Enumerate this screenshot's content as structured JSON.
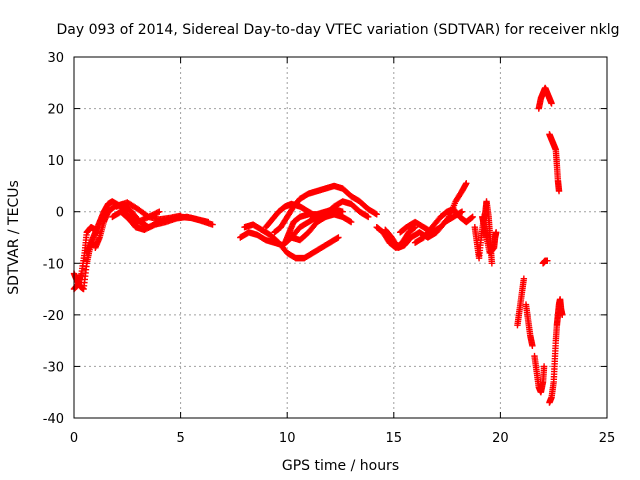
{
  "chart_data": {
    "type": "scatter",
    "title": "Day 093 of 2014, Sidereal Day-to-day VTEC variation (SDTVAR) for receiver nklg",
    "xlabel": "GPS time / hours",
    "ylabel": "SDTVAR / TECUs",
    "xlim": [
      0,
      25
    ],
    "ylim": [
      -40,
      30
    ],
    "x_ticks": [
      "0",
      "5",
      "10",
      "15",
      "20",
      "25"
    ],
    "y_ticks": [
      "30",
      "20",
      "10",
      "0",
      "-10",
      "-20",
      "-30",
      "-40"
    ],
    "grid": true,
    "marker": "+",
    "color": "#ff0000",
    "tracks": [
      {
        "name": "track-1",
        "points": [
          [
            0.0,
            -12
          ],
          [
            0.15,
            -13.5
          ],
          [
            0.3,
            -14.5
          ],
          [
            0.45,
            -15
          ],
          [
            0.6,
            -10
          ],
          [
            0.75,
            -7
          ],
          [
            0.9,
            -6
          ]
        ]
      },
      {
        "name": "track-2",
        "points": [
          [
            0.0,
            -15
          ],
          [
            0.2,
            -14
          ],
          [
            0.35,
            -12
          ],
          [
            0.5,
            -8
          ],
          [
            0.6,
            -4
          ],
          [
            0.8,
            -3
          ],
          [
            1.0,
            -3.5
          ],
          [
            1.1,
            -4
          ]
        ]
      },
      {
        "name": "track-3",
        "points": [
          [
            0.6,
            -8
          ],
          [
            0.8,
            -6
          ],
          [
            1.0,
            -4
          ],
          [
            1.2,
            -2
          ],
          [
            1.4,
            0
          ],
          [
            1.6,
            1.5
          ],
          [
            1.8,
            2
          ],
          [
            2.2,
            1
          ],
          [
            2.6,
            -1
          ],
          [
            3.0,
            -2
          ],
          [
            3.5,
            -1
          ],
          [
            4.0,
            0
          ]
        ]
      },
      {
        "name": "track-4",
        "points": [
          [
            1.0,
            -7
          ],
          [
            1.2,
            -5
          ],
          [
            1.4,
            -2
          ],
          [
            1.6,
            0
          ],
          [
            1.9,
            1
          ],
          [
            2.3,
            1.5
          ],
          [
            2.7,
            0
          ],
          [
            3.1,
            -2
          ],
          [
            3.5,
            -3
          ],
          [
            4.0,
            -2
          ],
          [
            4.5,
            -1.5
          ],
          [
            5.0,
            -1
          ],
          [
            5.5,
            -1.2
          ],
          [
            6.0,
            -1.8
          ],
          [
            6.5,
            -2.5
          ]
        ]
      },
      {
        "name": "track-5",
        "points": [
          [
            1.8,
            -1
          ],
          [
            2.2,
            0
          ],
          [
            2.6,
            -1.5
          ],
          [
            2.9,
            -3
          ],
          [
            3.3,
            -3.5
          ],
          [
            3.8,
            -2.5
          ],
          [
            4.3,
            -2
          ],
          [
            4.8,
            -1.3
          ],
          [
            5.3,
            -1
          ],
          [
            5.8,
            -1.5
          ],
          [
            6.3,
            -2
          ]
        ]
      },
      {
        "name": "track-6",
        "points": [
          [
            2.0,
            1
          ],
          [
            2.5,
            1.8
          ],
          [
            3.0,
            0.5
          ],
          [
            3.5,
            -1
          ],
          [
            4.0,
            -1.5
          ],
          [
            4.5,
            -1.2
          ],
          [
            5.0,
            -0.8
          ]
        ]
      },
      {
        "name": "track-7",
        "points": [
          [
            7.8,
            -5
          ],
          [
            8.2,
            -4
          ],
          [
            8.6,
            -4.5
          ],
          [
            9.0,
            -5.5
          ],
          [
            9.4,
            -6
          ],
          [
            9.8,
            -6.5
          ],
          [
            10.2,
            -5
          ],
          [
            10.6,
            -3
          ],
          [
            11.0,
            -2
          ],
          [
            11.4,
            -1
          ],
          [
            11.8,
            0
          ]
        ]
      },
      {
        "name": "track-8",
        "points": [
          [
            8.0,
            -3
          ],
          [
            8.4,
            -2.5
          ],
          [
            8.8,
            -3.5
          ],
          [
            9.2,
            -4.5
          ],
          [
            9.6,
            -6
          ],
          [
            10.0,
            -8
          ],
          [
            10.4,
            -9
          ],
          [
            10.8,
            -9
          ],
          [
            11.2,
            -8
          ],
          [
            11.6,
            -7
          ],
          [
            12.0,
            -6
          ],
          [
            12.4,
            -5
          ]
        ]
      },
      {
        "name": "track-9",
        "points": [
          [
            9.0,
            -3
          ],
          [
            9.3,
            -1.5
          ],
          [
            9.6,
            0
          ],
          [
            9.9,
            1
          ],
          [
            10.2,
            1.5
          ],
          [
            10.6,
            1
          ],
          [
            11.0,
            0
          ],
          [
            11.4,
            -1
          ],
          [
            11.8,
            -0.5
          ],
          [
            12.2,
            1
          ],
          [
            12.6,
            2
          ],
          [
            13.0,
            1.5
          ],
          [
            13.4,
            0
          ],
          [
            13.8,
            -1
          ]
        ]
      },
      {
        "name": "track-10",
        "points": [
          [
            9.4,
            -4
          ],
          [
            9.7,
            -3
          ],
          [
            10.0,
            -1
          ],
          [
            10.3,
            1
          ],
          [
            10.6,
            2.5
          ],
          [
            11.0,
            3.5
          ],
          [
            11.4,
            4
          ],
          [
            11.8,
            4.5
          ],
          [
            12.2,
            5
          ],
          [
            12.6,
            4.5
          ],
          [
            13.0,
            3
          ],
          [
            13.4,
            2
          ],
          [
            13.8,
            0.5
          ],
          [
            14.2,
            -0.5
          ]
        ]
      },
      {
        "name": "track-11",
        "points": [
          [
            9.9,
            -6
          ],
          [
            10.1,
            -4
          ],
          [
            10.3,
            -2
          ],
          [
            10.6,
            -1
          ],
          [
            11.0,
            -0.5
          ],
          [
            11.4,
            -0.5
          ],
          [
            11.8,
            0
          ],
          [
            12.2,
            0.5
          ],
          [
            12.6,
            0
          ]
        ]
      },
      {
        "name": "track-12",
        "points": [
          [
            10.2,
            -5
          ],
          [
            10.6,
            -5.5
          ],
          [
            11.0,
            -4
          ],
          [
            11.4,
            -2
          ],
          [
            11.8,
            -1
          ],
          [
            12.2,
            -0.5
          ],
          [
            12.6,
            -1
          ],
          [
            13.0,
            -2
          ]
        ]
      },
      {
        "name": "track-13",
        "points": [
          [
            14.2,
            -3
          ],
          [
            14.5,
            -4
          ],
          [
            14.8,
            -6
          ],
          [
            15.1,
            -7
          ],
          [
            15.4,
            -6
          ],
          [
            15.7,
            -4
          ],
          [
            16.0,
            -3
          ]
        ]
      },
      {
        "name": "track-14",
        "points": [
          [
            14.6,
            -3.5
          ],
          [
            14.9,
            -5
          ],
          [
            15.2,
            -7
          ],
          [
            15.5,
            -6.5
          ],
          [
            15.8,
            -5
          ],
          [
            16.2,
            -4
          ],
          [
            16.6,
            -5
          ],
          [
            17.0,
            -4
          ],
          [
            17.4,
            -2
          ],
          [
            17.8,
            -1
          ],
          [
            18.2,
            0
          ]
        ]
      },
      {
        "name": "track-15",
        "points": [
          [
            15.3,
            -4
          ],
          [
            15.6,
            -3
          ],
          [
            16.0,
            -2
          ],
          [
            16.4,
            -3
          ],
          [
            16.8,
            -4
          ],
          [
            17.2,
            -3
          ],
          [
            17.6,
            -1
          ],
          [
            17.9,
            2
          ],
          [
            18.2,
            4
          ],
          [
            18.4,
            5.5
          ]
        ]
      },
      {
        "name": "track-16",
        "points": [
          [
            16.0,
            -6
          ],
          [
            16.4,
            -5
          ],
          [
            16.8,
            -3
          ],
          [
            17.2,
            -1
          ],
          [
            17.5,
            0
          ],
          [
            17.8,
            0.5
          ],
          [
            18.1,
            -1
          ],
          [
            18.4,
            -2
          ],
          [
            18.7,
            -1
          ]
        ]
      },
      {
        "name": "track-17",
        "points": [
          [
            18.8,
            -3
          ],
          [
            18.9,
            -6
          ],
          [
            19.0,
            -9
          ],
          [
            19.1,
            -5
          ],
          [
            19.2,
            -2
          ],
          [
            19.3,
            0
          ],
          [
            19.35,
            2
          ],
          [
            19.45,
            -1
          ],
          [
            19.5,
            -4
          ],
          [
            19.55,
            -7
          ],
          [
            19.6,
            -10
          ]
        ]
      },
      {
        "name": "track-18",
        "points": [
          [
            19.15,
            -1
          ],
          [
            19.25,
            -3
          ],
          [
            19.35,
            -5
          ],
          [
            19.5,
            -8
          ],
          [
            19.7,
            -7
          ],
          [
            19.75,
            -5
          ],
          [
            19.8,
            -4
          ]
        ]
      },
      {
        "name": "track-19",
        "points": [
          [
            20.8,
            -22
          ],
          [
            20.9,
            -19
          ],
          [
            21.0,
            -16
          ],
          [
            21.1,
            -13
          ]
        ]
      },
      {
        "name": "track-20",
        "points": [
          [
            21.2,
            -18
          ],
          [
            21.3,
            -21
          ],
          [
            21.4,
            -24
          ],
          [
            21.5,
            -26
          ]
        ]
      },
      {
        "name": "track-21",
        "points": [
          [
            21.6,
            -28
          ],
          [
            21.7,
            -31
          ],
          [
            21.8,
            -34
          ],
          [
            21.9,
            -35
          ],
          [
            22.0,
            -33
          ],
          [
            22.05,
            -30
          ]
        ]
      },
      {
        "name": "track-22",
        "points": [
          [
            21.8,
            20
          ],
          [
            21.9,
            22
          ],
          [
            22.0,
            23
          ],
          [
            22.1,
            24
          ],
          [
            22.2,
            23
          ],
          [
            22.3,
            22
          ],
          [
            22.4,
            21
          ]
        ]
      },
      {
        "name": "track-23",
        "points": [
          [
            22.0,
            -10
          ],
          [
            22.1,
            -9.5
          ],
          [
            22.2,
            -9.5
          ]
        ]
      },
      {
        "name": "track-24",
        "points": [
          [
            22.3,
            15
          ],
          [
            22.4,
            14
          ],
          [
            22.5,
            13
          ],
          [
            22.6,
            12
          ],
          [
            22.65,
            9
          ],
          [
            22.7,
            6
          ],
          [
            22.75,
            4
          ]
        ]
      },
      {
        "name": "track-25",
        "points": [
          [
            22.3,
            -37
          ],
          [
            22.4,
            -36
          ],
          [
            22.5,
            -33
          ],
          [
            22.55,
            -29
          ],
          [
            22.6,
            -25
          ],
          [
            22.65,
            -22
          ],
          [
            22.7,
            -20
          ],
          [
            22.75,
            -18
          ],
          [
            22.8,
            -17
          ],
          [
            22.85,
            -19
          ],
          [
            22.9,
            -20
          ]
        ]
      }
    ]
  }
}
